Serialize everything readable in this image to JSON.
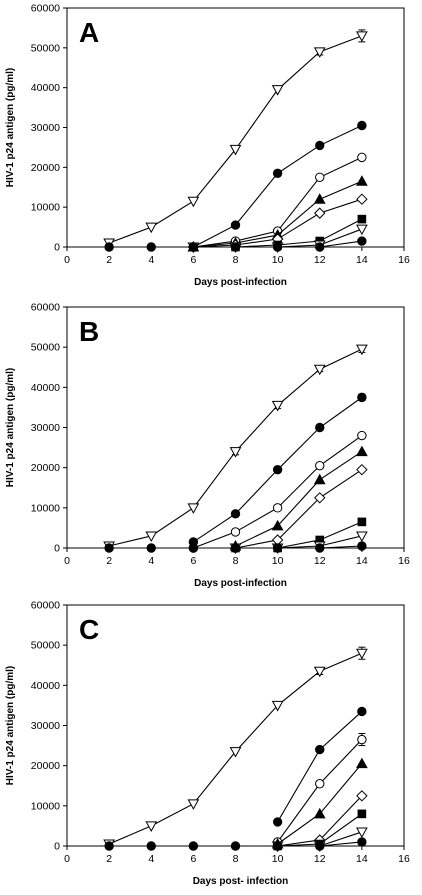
{
  "chart_data": [
    {
      "type": "line",
      "panel_label": "A",
      "xlabel": "Days post-infection",
      "ylabel": "HIV-1 p24 antigen (pg/ml)",
      "xlim": [
        0,
        16
      ],
      "ylim": [
        0,
        60000
      ],
      "xticks": [
        "0",
        "2",
        "4",
        "6",
        "8",
        "10",
        "12",
        "14",
        "16"
      ],
      "yticks": [
        "0",
        "10000",
        "20000",
        "30000",
        "40000",
        "50000",
        "60000"
      ],
      "grid": false,
      "legend": "none",
      "series": [
        {
          "marker": "triangle-down-open",
          "x": [
            2,
            4,
            6,
            8,
            10,
            12,
            14
          ],
          "y": [
            1000,
            5000,
            11500,
            24500,
            39500,
            49000,
            53000
          ],
          "err": [
            0,
            0,
            0,
            0,
            0,
            800,
            1500
          ]
        },
        {
          "marker": "circle-filled",
          "x": [
            6,
            8,
            10,
            12,
            14
          ],
          "y": [
            0,
            5500,
            18500,
            25500,
            30500
          ],
          "err": [
            0,
            0,
            0,
            0,
            0
          ]
        },
        {
          "marker": "circle-open",
          "x": [
            6,
            8,
            10,
            12,
            14
          ],
          "y": [
            0,
            1500,
            4000,
            17500,
            22500
          ],
          "err": [
            0,
            0,
            0,
            0,
            0
          ]
        },
        {
          "marker": "triangle-up-filled",
          "x": [
            6,
            8,
            10,
            12,
            14
          ],
          "y": [
            0,
            1000,
            3000,
            12000,
            16500
          ],
          "err": [
            0,
            0,
            0,
            0,
            0
          ]
        },
        {
          "marker": "diamond-open",
          "x": [
            6,
            8,
            10,
            12,
            14
          ],
          "y": [
            0,
            500,
            2000,
            8500,
            12000
          ],
          "err": [
            0,
            0,
            0,
            0,
            0
          ]
        },
        {
          "marker": "square-filled",
          "x": [
            6,
            8,
            10,
            12,
            14
          ],
          "y": [
            0,
            0,
            500,
            1500,
            7000
          ],
          "err": [
            0,
            0,
            0,
            0,
            0
          ]
        },
        {
          "marker": "triangle-down-open",
          "x": [
            6,
            8,
            10,
            12,
            14
          ],
          "y": [
            0,
            0,
            0,
            500,
            4500
          ],
          "err": [
            0,
            0,
            0,
            0,
            0
          ]
        },
        {
          "marker": "circle-filled",
          "x": [
            2,
            4,
            6,
            8,
            10,
            12,
            14
          ],
          "y": [
            0,
            0,
            0,
            0,
            0,
            0,
            1500
          ],
          "err": [
            0,
            0,
            0,
            0,
            0,
            0,
            0
          ]
        }
      ]
    },
    {
      "type": "line",
      "panel_label": "B",
      "xlabel": "Days post-infection",
      "ylabel": "HIV-1 p24 antigen (pg/ml)",
      "xlim": [
        0,
        16
      ],
      "ylim": [
        0,
        60000
      ],
      "xticks": [
        "0",
        "2",
        "4",
        "6",
        "8",
        "10",
        "12",
        "14",
        "16"
      ],
      "yticks": [
        "0",
        "10000",
        "20000",
        "30000",
        "40000",
        "50000",
        "60000"
      ],
      "grid": false,
      "legend": "none",
      "series": [
        {
          "marker": "triangle-down-open",
          "x": [
            2,
            4,
            6,
            8,
            10,
            12,
            14
          ],
          "y": [
            500,
            3000,
            10000,
            24000,
            35500,
            44500,
            49500
          ],
          "err": [
            0,
            0,
            0,
            800,
            800,
            600,
            800
          ]
        },
        {
          "marker": "circle-filled",
          "x": [
            6,
            8,
            10,
            12,
            14
          ],
          "y": [
            1500,
            8500,
            19500,
            30000,
            37500
          ],
          "err": [
            0,
            0,
            0,
            0,
            800
          ]
        },
        {
          "marker": "circle-open",
          "x": [
            6,
            8,
            10,
            12,
            14
          ],
          "y": [
            0,
            4000,
            10000,
            20500,
            28000
          ],
          "err": [
            0,
            0,
            0,
            0,
            0
          ]
        },
        {
          "marker": "triangle-up-filled",
          "x": [
            8,
            10,
            12,
            14
          ],
          "y": [
            500,
            5500,
            17000,
            24000
          ],
          "err": [
            0,
            0,
            0,
            0
          ]
        },
        {
          "marker": "diamond-open",
          "x": [
            8,
            10,
            12,
            14
          ],
          "y": [
            0,
            2000,
            12500,
            19500
          ],
          "err": [
            0,
            0,
            0,
            0
          ]
        },
        {
          "marker": "square-filled",
          "x": [
            8,
            10,
            12,
            14
          ],
          "y": [
            0,
            0,
            2000,
            6500
          ],
          "err": [
            0,
            0,
            0,
            0
          ]
        },
        {
          "marker": "triangle-down-open",
          "x": [
            8,
            10,
            12,
            14
          ],
          "y": [
            0,
            0,
            500,
            3000
          ],
          "err": [
            0,
            0,
            0,
            0
          ]
        },
        {
          "marker": "circle-filled",
          "x": [
            2,
            4,
            6,
            8,
            10,
            12,
            14
          ],
          "y": [
            0,
            0,
            0,
            0,
            0,
            0,
            500
          ],
          "err": [
            0,
            0,
            0,
            0,
            0,
            0,
            0
          ]
        }
      ]
    },
    {
      "type": "line",
      "panel_label": "C",
      "xlabel": "Days post- infection",
      "ylabel": "HIV-1 p24 antigen (pg/ml)",
      "xlim": [
        0,
        16
      ],
      "ylim": [
        0,
        60000
      ],
      "xticks": [
        "0",
        "2",
        "4",
        "6",
        "8",
        "10",
        "12",
        "14",
        "16"
      ],
      "yticks": [
        "0",
        "10000",
        "20000",
        "30000",
        "40000",
        "50000",
        "60000"
      ],
      "grid": false,
      "legend": "none",
      "series": [
        {
          "marker": "triangle-down-open",
          "x": [
            2,
            4,
            6,
            8,
            10,
            12,
            14
          ],
          "y": [
            500,
            5000,
            10500,
            23500,
            35000,
            43500,
            48000
          ],
          "err": [
            0,
            0,
            0,
            0,
            0,
            800,
            1500
          ]
        },
        {
          "marker": "circle-filled",
          "x": [
            10,
            12,
            14
          ],
          "y": [
            6000,
            24000,
            33500
          ],
          "err": [
            0,
            0,
            0
          ]
        },
        {
          "marker": "circle-open",
          "x": [
            10,
            12,
            14
          ],
          "y": [
            1000,
            15500,
            26500
          ],
          "err": [
            0,
            0,
            1500
          ]
        },
        {
          "marker": "triangle-up-filled",
          "x": [
            10,
            12,
            14
          ],
          "y": [
            500,
            8000,
            20500
          ],
          "err": [
            0,
            0,
            0
          ]
        },
        {
          "marker": "diamond-open",
          "x": [
            10,
            12,
            14
          ],
          "y": [
            0,
            1500,
            12500
          ],
          "err": [
            0,
            0,
            0
          ]
        },
        {
          "marker": "square-filled",
          "x": [
            10,
            12,
            14
          ],
          "y": [
            0,
            500,
            8000
          ],
          "err": [
            0,
            0,
            0
          ]
        },
        {
          "marker": "triangle-down-open",
          "x": [
            10,
            12,
            14
          ],
          "y": [
            0,
            0,
            3500
          ],
          "err": [
            0,
            0,
            0
          ]
        },
        {
          "marker": "circle-filled",
          "x": [
            2,
            4,
            6,
            8,
            10,
            12,
            14
          ],
          "y": [
            0,
            0,
            0,
            0,
            0,
            0,
            1000
          ],
          "err": [
            0,
            0,
            0,
            0,
            0,
            0,
            0
          ]
        }
      ]
    }
  ]
}
